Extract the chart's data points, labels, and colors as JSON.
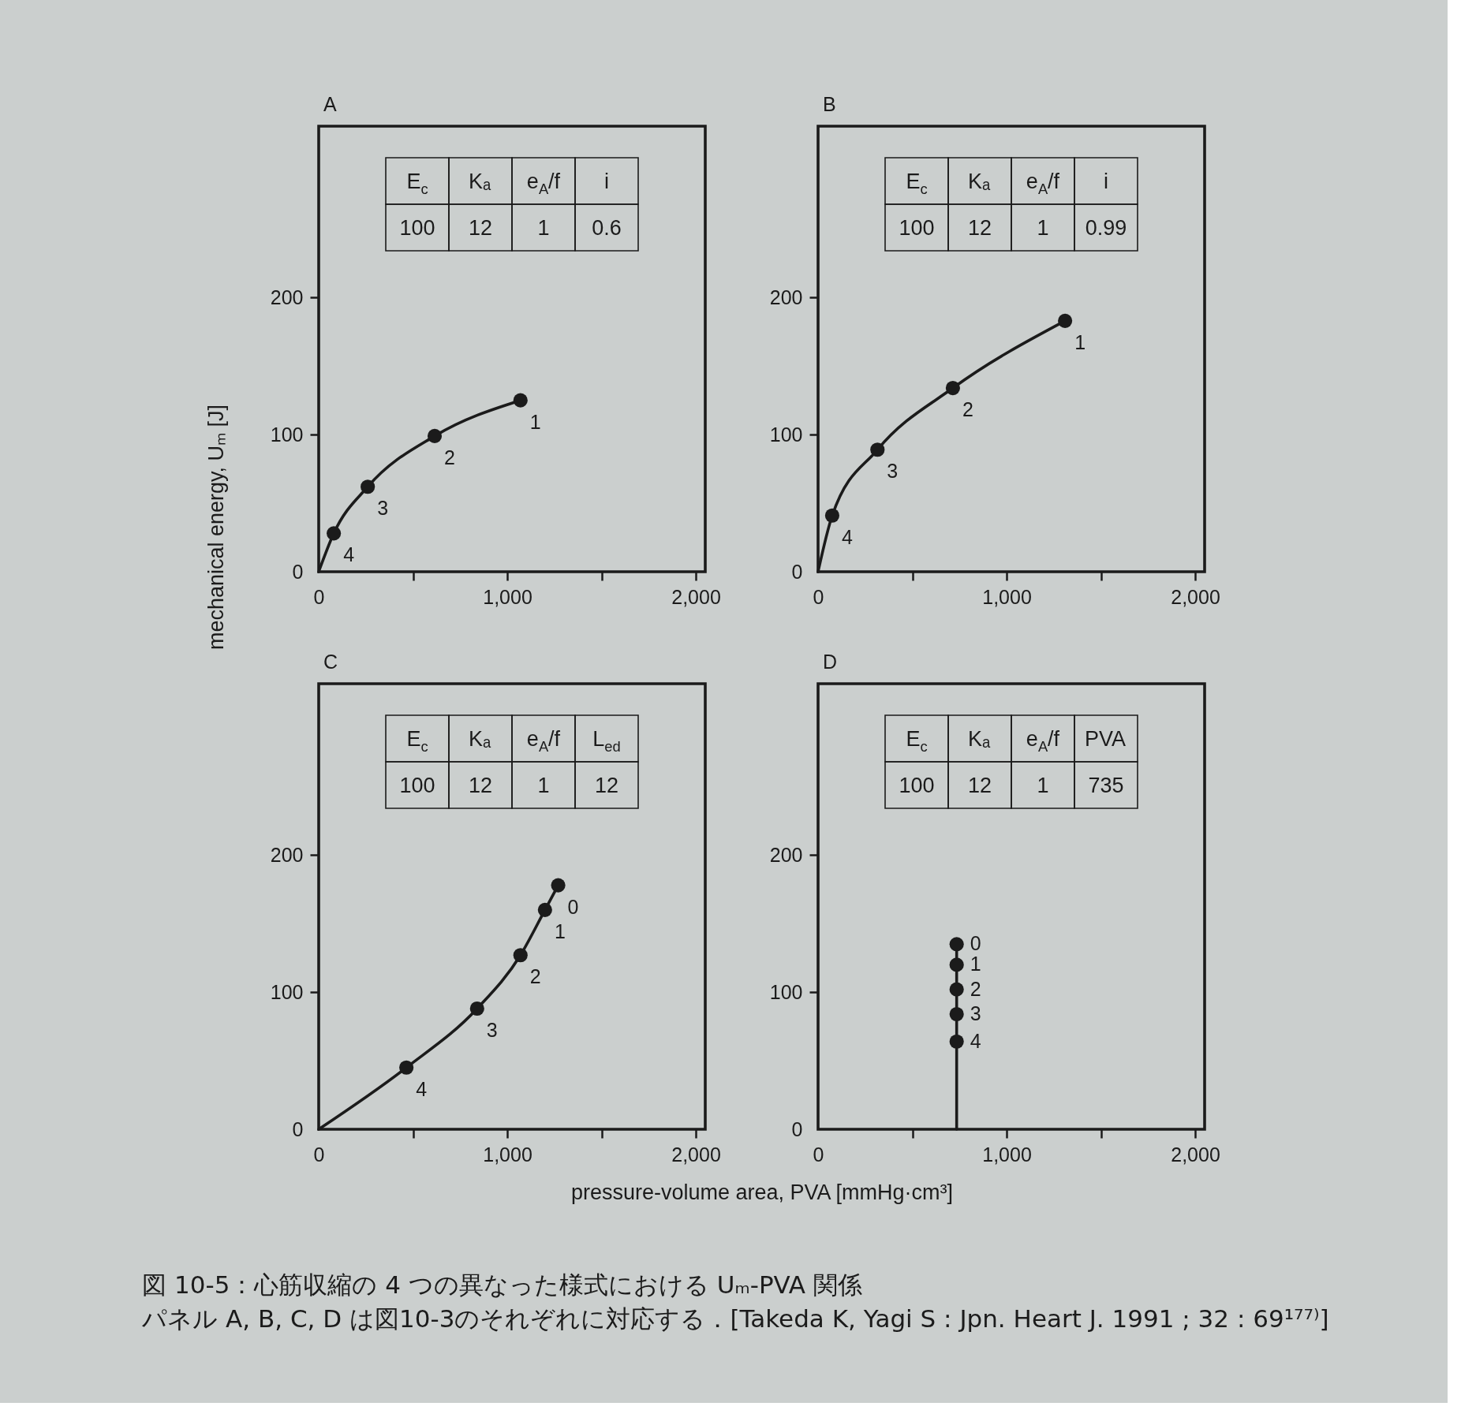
{
  "chart_data": [
    {
      "type": "line",
      "title": "A",
      "ylabel": "mechanical energy, Uₘ [J]",
      "xlim": [
        0,
        2050
      ],
      "ylim": [
        0,
        325
      ],
      "xticks": [
        {
          "value": 0,
          "label": "0"
        },
        {
          "value": 500,
          "label": null
        },
        {
          "value": 1000,
          "label": "1,000"
        },
        {
          "value": 1500,
          "label": null
        },
        {
          "value": 2000,
          "label": "2,000"
        }
      ],
      "yticks": [
        0,
        100,
        200
      ],
      "series": [
        {
          "type": "line",
          "marker": "none",
          "color": "#1b1b1b",
          "x": [
            0,
            80,
            260,
            615,
            1070
          ],
          "values": [
            0,
            28,
            62,
            99,
            125
          ]
        },
        {
          "type": "scatter",
          "marker": "circle",
          "color": "#1b1b1b",
          "x": [
            80,
            260,
            615,
            1070
          ],
          "values": [
            28,
            62,
            99,
            125
          ]
        }
      ],
      "annotations": [
        "E$_{c}$",
        "Kₐ",
        "e$_{A}$/f",
        "i",
        "100",
        "12",
        "1",
        "0.6",
        {
          "text": "4",
          "x": 80,
          "y": 28
        },
        {
          "text": "3",
          "x": 260,
          "y": 62
        },
        {
          "text": "2",
          "x": 615,
          "y": 99
        },
        {
          "text": "1",
          "x": 1070,
          "y": 125
        }
      ]
    },
    {
      "type": "line",
      "title": "B",
      "xlim": [
        0,
        2050
      ],
      "ylim": [
        0,
        325
      ],
      "xticks": [
        {
          "value": 0,
          "label": "0"
        },
        {
          "value": 500,
          "label": null
        },
        {
          "value": 1000,
          "label": "1,000"
        },
        {
          "value": 1500,
          "label": null
        },
        {
          "value": 2000,
          "label": "2,000"
        }
      ],
      "yticks": [
        0,
        100,
        200
      ],
      "series": [
        {
          "type": "line",
          "marker": "none",
          "color": "#1b1b1b",
          "x": [
            0,
            75,
            315,
            715,
            1310
          ],
          "values": [
            0,
            41,
            89,
            134,
            183
          ]
        },
        {
          "type": "scatter",
          "marker": "circle",
          "color": "#1b1b1b",
          "x": [
            75,
            315,
            715,
            1310
          ],
          "values": [
            41,
            89,
            134,
            183
          ]
        }
      ],
      "annotations": [
        "E$_{c}$",
        "Kₐ",
        "e$_{A}$/f",
        "i",
        "100",
        "12",
        "1",
        "0.99",
        {
          "text": "4",
          "x": 75,
          "y": 41
        },
        {
          "text": "3",
          "x": 315,
          "y": 89
        },
        {
          "text": "2",
          "x": 715,
          "y": 134
        },
        {
          "text": "1",
          "x": 1310,
          "y": 183
        }
      ]
    },
    {
      "type": "line",
      "title": "C",
      "xlabel": "pressure-volume area, PVA [mmHg·cm³]",
      "xlim": [
        0,
        2050
      ],
      "ylim": [
        0,
        325
      ],
      "xticks": [
        {
          "value": 0,
          "label": "0"
        },
        {
          "value": 500,
          "label": null
        },
        {
          "value": 1000,
          "label": "1,000"
        },
        {
          "value": 1500,
          "label": null
        },
        {
          "value": 2000,
          "label": "2,000"
        }
      ],
      "yticks": [
        0,
        100,
        200
      ],
      "series": [
        {
          "type": "line",
          "marker": "none",
          "color": "#1b1b1b",
          "x": [
            0,
            465,
            840,
            1070,
            1200,
            1270
          ],
          "values": [
            0,
            45,
            88,
            127,
            160,
            178
          ]
        },
        {
          "type": "scatter",
          "marker": "circle",
          "color": "#1b1b1b",
          "x": [
            465,
            840,
            1070,
            1200,
            1270
          ],
          "values": [
            45,
            88,
            127,
            160,
            178
          ]
        }
      ],
      "annotations": [
        "E$_{c}$",
        "Kₐ",
        "e$_{A}$/f",
        "L$_{ed}$",
        "100",
        "12",
        "1",
        "12",
        {
          "text": "4",
          "x": 465,
          "y": 45
        },
        {
          "text": "3",
          "x": 840,
          "y": 88
        },
        {
          "text": "2",
          "x": 1070,
          "y": 127
        },
        {
          "text": "1",
          "x": 1200,
          "y": 160
        },
        {
          "text": "0",
          "x": 1270,
          "y": 178
        }
      ]
    },
    {
      "type": "line",
      "title": "D",
      "xlim": [
        0,
        2050
      ],
      "ylim": [
        0,
        325
      ],
      "xticks": [
        {
          "value": 0,
          "label": "0"
        },
        {
          "value": 500,
          "label": null
        },
        {
          "value": 1000,
          "label": "1,000"
        },
        {
          "value": 1500,
          "label": null
        },
        {
          "value": 2000,
          "label": "2,000"
        }
      ],
      "yticks": [
        0,
        100,
        200
      ],
      "series": [
        {
          "type": "line",
          "marker": "none",
          "color": "#1b1b1b",
          "x": [
            735,
            735,
            735,
            735,
            735,
            735
          ],
          "values": [
            0,
            64,
            84,
            102,
            120,
            135
          ]
        },
        {
          "type": "scatter",
          "marker": "circle",
          "color": "#1b1b1b",
          "x": [
            735,
            735,
            735,
            735,
            735
          ],
          "values": [
            64,
            84,
            102,
            120,
            135
          ]
        }
      ],
      "annotations": [
        "E$_{c}$",
        "Kₐ",
        "e$_{A}$/f",
        "PVA",
        "100",
        "12",
        "1",
        "735",
        {
          "text": "4",
          "x": 735,
          "y": 64
        },
        {
          "text": "3",
          "x": 735,
          "y": 84
        },
        {
          "text": "2",
          "x": 735,
          "y": 102
        },
        {
          "text": "1",
          "x": 735,
          "y": 120
        },
        {
          "text": "0",
          "x": 735,
          "y": 135
        }
      ]
    },
    {
      "type": "other",
      "title": "図 10-5：心筋収縮の 4 つの異なった様式における Uₘ-PVA 関係",
      "annotations": [
        "パネル A, B, C, D は図10-3のそれぞれに対応する．[Takeda K, Yagi S : Jpn. Heart J. 1991 ; 32 : 69¹⁷⁷⁾]"
      ]
    }
  ]
}
